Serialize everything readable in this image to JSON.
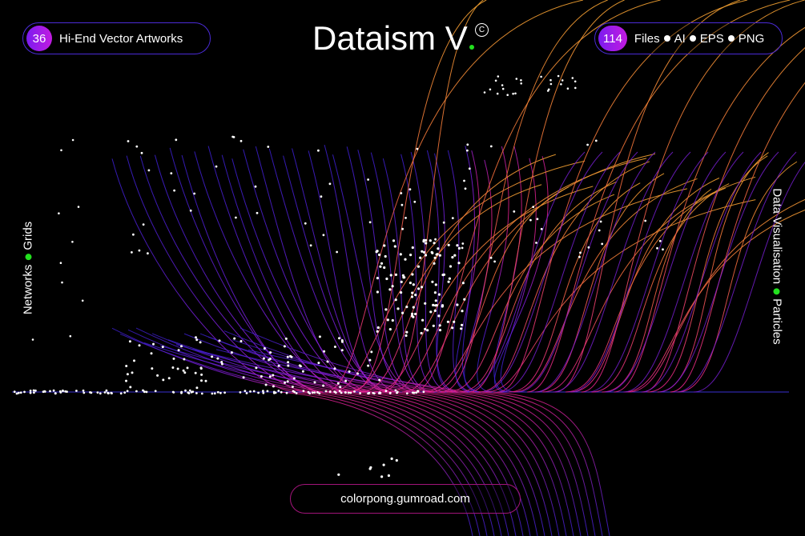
{
  "header": {
    "left_badge": "36",
    "left_label": "Hi-End Vector Artworks",
    "title": "Dataism V",
    "right_badge": "114",
    "formats": [
      "Files",
      "AI",
      "EPS",
      "PNG"
    ]
  },
  "side": {
    "left": [
      "Networks",
      "Grids"
    ],
    "right": [
      "Data Visualisation",
      "Particles"
    ]
  },
  "footer": {
    "url": "colorpong.gumroad.com"
  },
  "colors": {
    "background": "#000000",
    "accent_purple": "#4b2bd8",
    "accent_magenta": "#e0208a",
    "accent_orange": "#f0a030",
    "bullet_green": "#22e01e"
  }
}
